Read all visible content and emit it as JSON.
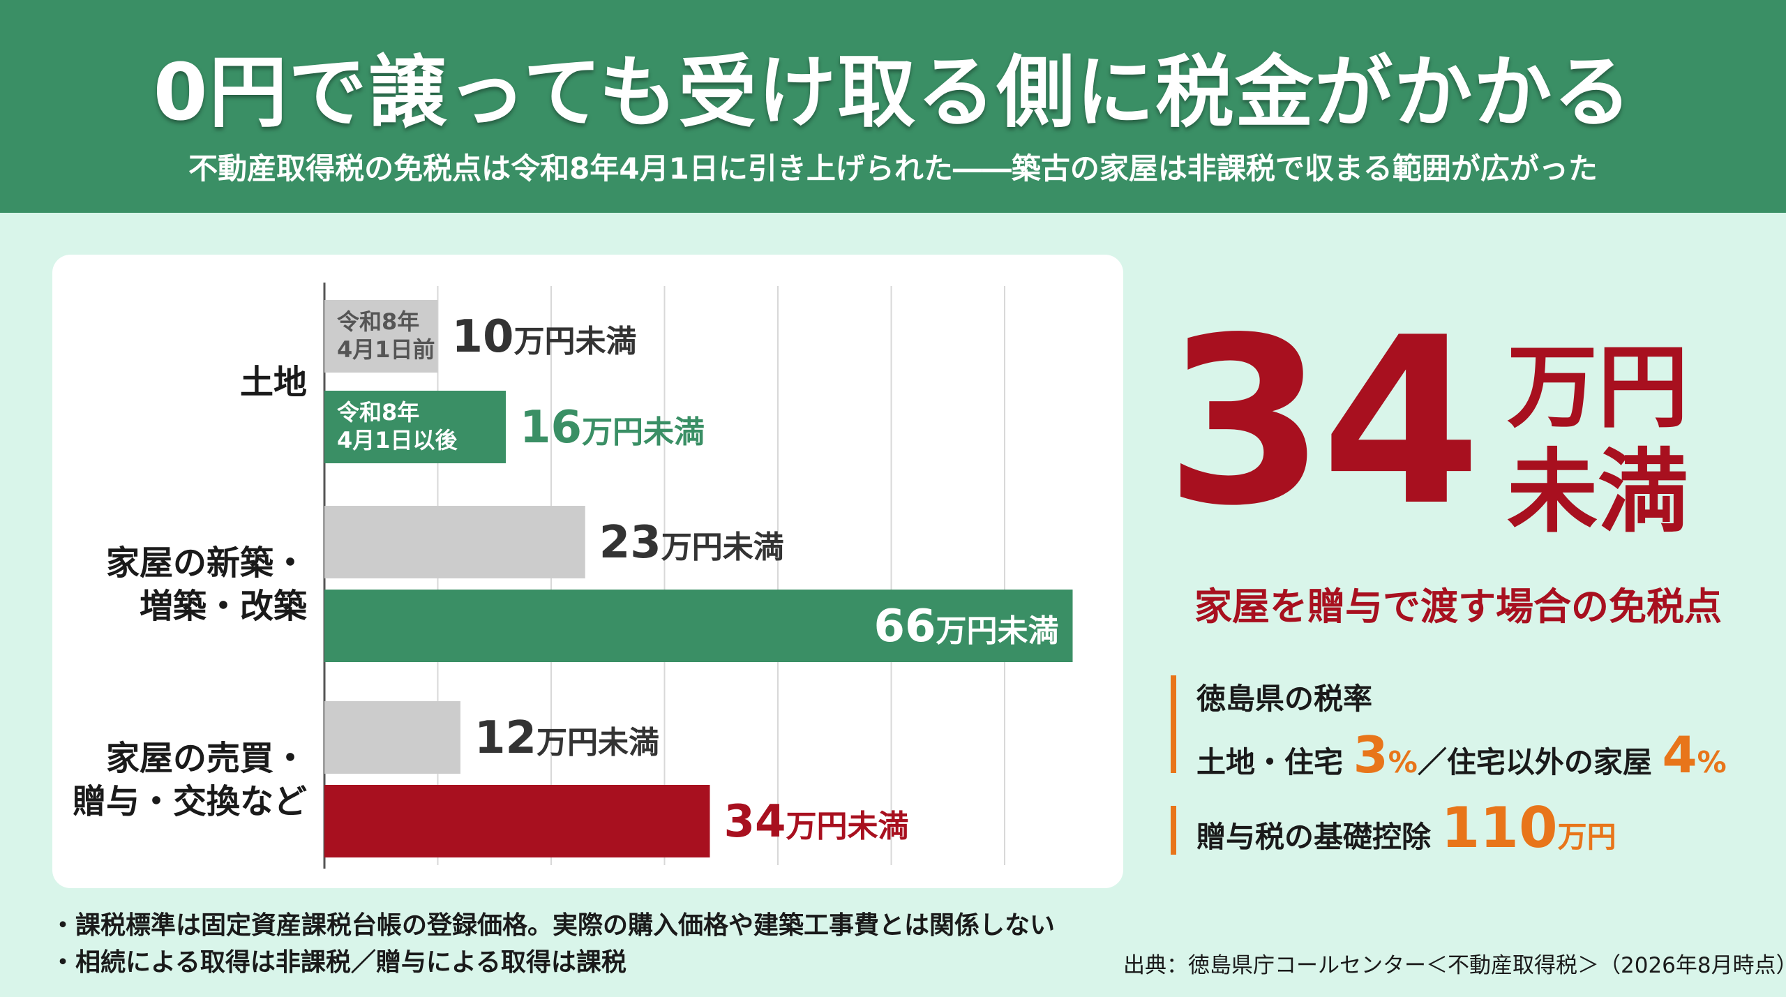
{
  "title": "0円で譲っても受け取る側に税金がかかる",
  "subtitle": "不動産取得税の免税点は令和8年4月1日に引き上げられた――築古の家屋は非課税で収まる範囲が広がった",
  "colors": {
    "before": "#cccccc",
    "after": "#3a8f65",
    "highlight": "#a8101f",
    "accent": "#e8751a",
    "header": "#3a8f65"
  },
  "chart_data": {
    "type": "bar",
    "orientation": "horizontal",
    "unit": "万円未満",
    "categories": [
      "土地",
      "家屋の新築・増築・改築",
      "家屋の売買・贈与・交換など"
    ],
    "category_lines": [
      [
        "土地"
      ],
      [
        "家屋の新築・",
        "増築・改築"
      ],
      [
        "家屋の売買・",
        "贈与・交換など"
      ]
    ],
    "series": [
      {
        "name": "令和8年4月1日前",
        "label_lines": [
          "令和8年",
          "4月1日前"
        ],
        "values": [
          10,
          23,
          12
        ]
      },
      {
        "name": "令和8年4月1日以後",
        "label_lines": [
          "令和8年",
          "4月1日以後"
        ],
        "values": [
          16,
          66,
          34
        ]
      }
    ],
    "grid": true,
    "xlim": [
      0,
      68
    ]
  },
  "highlight": {
    "number": "34",
    "unit_line1": "万円",
    "unit_line2": "未満",
    "caption": "家屋を贈与で渡す場合の免税点"
  },
  "tax_info": {
    "rate_title": "徳島県の税率",
    "land_label": "土地・住宅",
    "land_rate": "3",
    "other_label": "／住宅以外の家屋",
    "other_rate": "4",
    "percent": "%",
    "gift_label": "贈与税の基礎控除",
    "gift_value": "110",
    "gift_unit": "万円"
  },
  "notes": [
    "・課税標準は固定資産課税台帳の登録価格。実際の購入価格や建築工事費とは関係しない",
    "・相続による取得は非課税／贈与による取得は課税"
  ],
  "source": "出典：徳島県庁コールセンター＜不動産取得税＞（2026年8月時点）"
}
